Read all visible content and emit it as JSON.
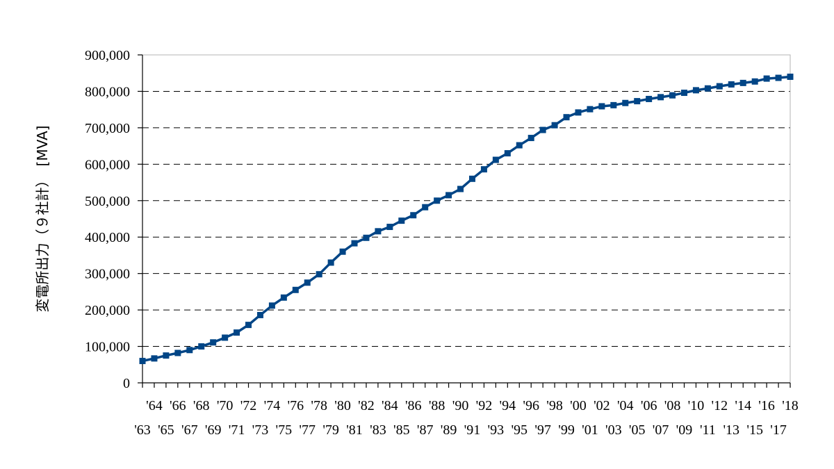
{
  "chart_data": {
    "type": "line",
    "title": "",
    "xlabel": "",
    "ylabel": "変電所出力（９社計）　[MVA]",
    "ylim": [
      0,
      900000
    ],
    "y_ticks": [
      "0",
      "100,000",
      "200,000",
      "300,000",
      "400,000",
      "500,000",
      "600,000",
      "700,000",
      "800,000",
      "900,000"
    ],
    "grid": "horizontal dashed",
    "legend": "none",
    "categories": [
      "'63",
      "'64",
      "'65",
      "'66",
      "'67",
      "'68",
      "'69",
      "'70",
      "'71",
      "'72",
      "'73",
      "'74",
      "'75",
      "'76",
      "'77",
      "'78",
      "'79",
      "'80",
      "'81",
      "'82",
      "'83",
      "'84",
      "'85",
      "'86",
      "'87",
      "'88",
      "'89",
      "'90",
      "'91",
      "'92",
      "'93",
      "'94",
      "'95",
      "'96",
      "'97",
      "'98",
      "'99",
      "'00",
      "'01",
      "'02",
      "'03",
      "'04",
      "'05",
      "'06",
      "'07",
      "'08",
      "'09",
      "'10",
      "'11",
      "'12",
      "'13",
      "'14",
      "'15",
      "'16",
      "'17",
      "'18"
    ],
    "series": [
      {
        "color": "#004586",
        "values": [
          60000,
          67000,
          75000,
          82000,
          90000,
          100000,
          111000,
          124000,
          138000,
          159000,
          186000,
          212000,
          234000,
          255000,
          275000,
          298000,
          330000,
          360000,
          383000,
          398000,
          416000,
          428000,
          445000,
          460000,
          482000,
          500000,
          515000,
          532000,
          560000,
          586000,
          612000,
          630000,
          652000,
          672000,
          694000,
          707000,
          729000,
          742000,
          751000,
          759000,
          762000,
          768000,
          773000,
          779000,
          784000,
          789000,
          796000,
          803000,
          808000,
          814000,
          819000,
          823000,
          827000,
          835000,
          837000,
          840000
        ]
      }
    ]
  }
}
